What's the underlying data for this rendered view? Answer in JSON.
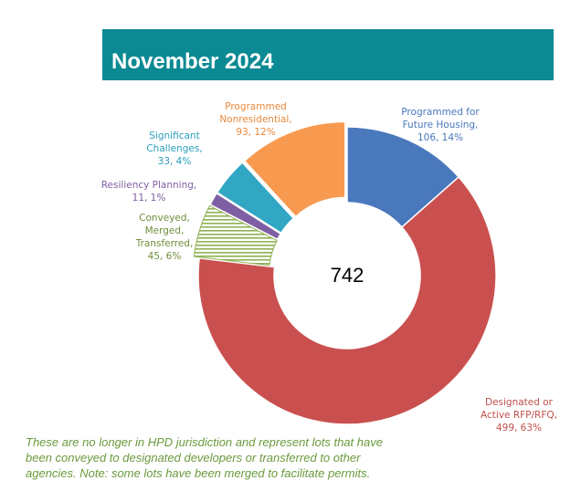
{
  "chart_data": {
    "type": "pie",
    "title": "November 2024",
    "center_total": "742",
    "slices": [
      {
        "name": "Programmed for Future Housing",
        "value": 106,
        "percent": "14%",
        "color": "#4a78bc",
        "label_lines": [
          "Programmed for",
          "Future Housing,",
          "106, 14%"
        ],
        "label_color": "#4a78bc"
      },
      {
        "name": "Designated or Active RFP/RFQ",
        "value": 499,
        "percent": "63%",
        "color": "#c9504e",
        "label_lines": [
          "Designated or",
          "Active RFP/RFQ,",
          "499, 63%"
        ],
        "label_color": "#c0504d"
      },
      {
        "name": "Conveyed, Merged, Transferred",
        "value": 45,
        "percent": "6%",
        "color": "#8fb154",
        "pattern": "horizontal-stripes",
        "label_lines": [
          "Conveyed,",
          "Merged,",
          "Transferred,",
          "45, 6%"
        ],
        "label_color": "#6f8f3a"
      },
      {
        "name": "Resiliency Planning",
        "value": 11,
        "percent": "1%",
        "color": "#7e5fa3",
        "label_lines": [
          "Resiliency Planning,",
          "11, 1%"
        ],
        "label_color": "#7e5fa3"
      },
      {
        "name": "Significant Challenges",
        "value": 33,
        "percent": "4%",
        "color": "#31a7c4",
        "label_lines": [
          "Significant",
          "Challenges,",
          "33, 4%"
        ],
        "label_color": "#2c9fbd"
      },
      {
        "name": "Programmed Nonresidential",
        "value": 93,
        "percent": "12%",
        "color": "#f79a50",
        "label_lines": [
          "Programmed",
          "Nonresidential,",
          "93, 12%"
        ],
        "label_color": "#e8893c"
      }
    ]
  },
  "footnote": {
    "lines": [
      "These are no longer in HPD jurisdiction and represent lots that have",
      "been conveyed to designated developers or transferred to other",
      "agencies. Note: some lots have been merged to facilitate permits."
    ]
  },
  "colors": {
    "banner": "#0b8a93",
    "footnote": "#6a9a3c"
  }
}
